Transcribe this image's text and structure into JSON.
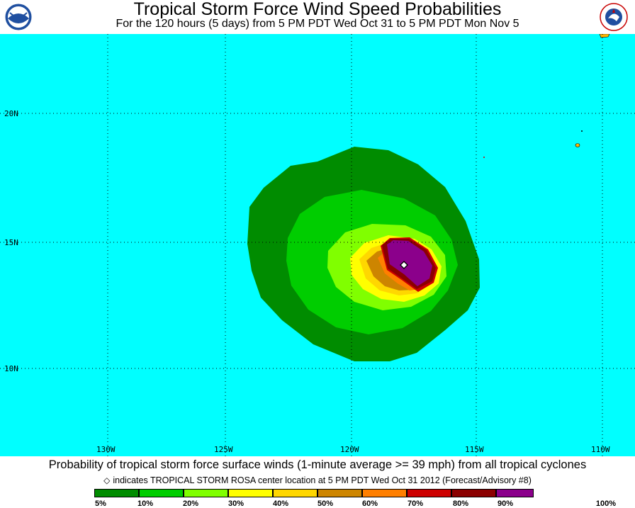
{
  "header": {
    "title": "Tropical Storm Force Wind Speed Probabilities",
    "subtitle": "For the 120 hours (5 days) from 5 PM PDT Wed Oct 31 to 5 PM PDT Mon Nov 5",
    "logo_left_text": "NOAA",
    "logo_right_text": "NATIONAL WEATHER SERVICE"
  },
  "map": {
    "background_color": "#00ffff",
    "lat_labels": [
      "20N",
      "15N",
      "10N"
    ],
    "lon_labels": [
      "130W",
      "125W",
      "120W",
      "115W",
      "110W"
    ],
    "storm_marker_icon": "diamond-icon",
    "probability_bands": [
      {
        "range": "5-10%",
        "color": "#008c00"
      },
      {
        "range": "10-20%",
        "color": "#00cd00"
      },
      {
        "range": "20-30%",
        "color": "#80ff00"
      },
      {
        "range": "30-40%",
        "color": "#ffff00"
      },
      {
        "range": "40-50%",
        "color": "#ffd700"
      },
      {
        "range": "50-60%",
        "color": "#cd8500"
      },
      {
        "range": "60-70%",
        "color": "#ff7f00"
      },
      {
        "range": "70-80%",
        "color": "#cd0000"
      },
      {
        "range": "80-90%",
        "color": "#8b0000"
      },
      {
        "range": "90-100%",
        "color": "#8b008b"
      }
    ]
  },
  "footer": {
    "caption": "Probability of tropical storm force surface winds (1-minute average >= 39 mph) from all tropical cyclones",
    "note_symbol": "◇",
    "note": "indicates TROPICAL STORM ROSA center location at 5 PM PDT Wed Oct 31 2012 (Forecast/Advisory #8)"
  },
  "legend": {
    "labels": [
      "5%",
      "10%",
      "20%",
      "30%",
      "40%",
      "50%",
      "60%",
      "70%",
      "80%",
      "90%",
      "100%"
    ],
    "colors": [
      "#008c00",
      "#00cd00",
      "#80ff00",
      "#ffff00",
      "#ffd700",
      "#cd8500",
      "#ff7f00",
      "#cd0000",
      "#8b0000",
      "#8b008b"
    ]
  }
}
